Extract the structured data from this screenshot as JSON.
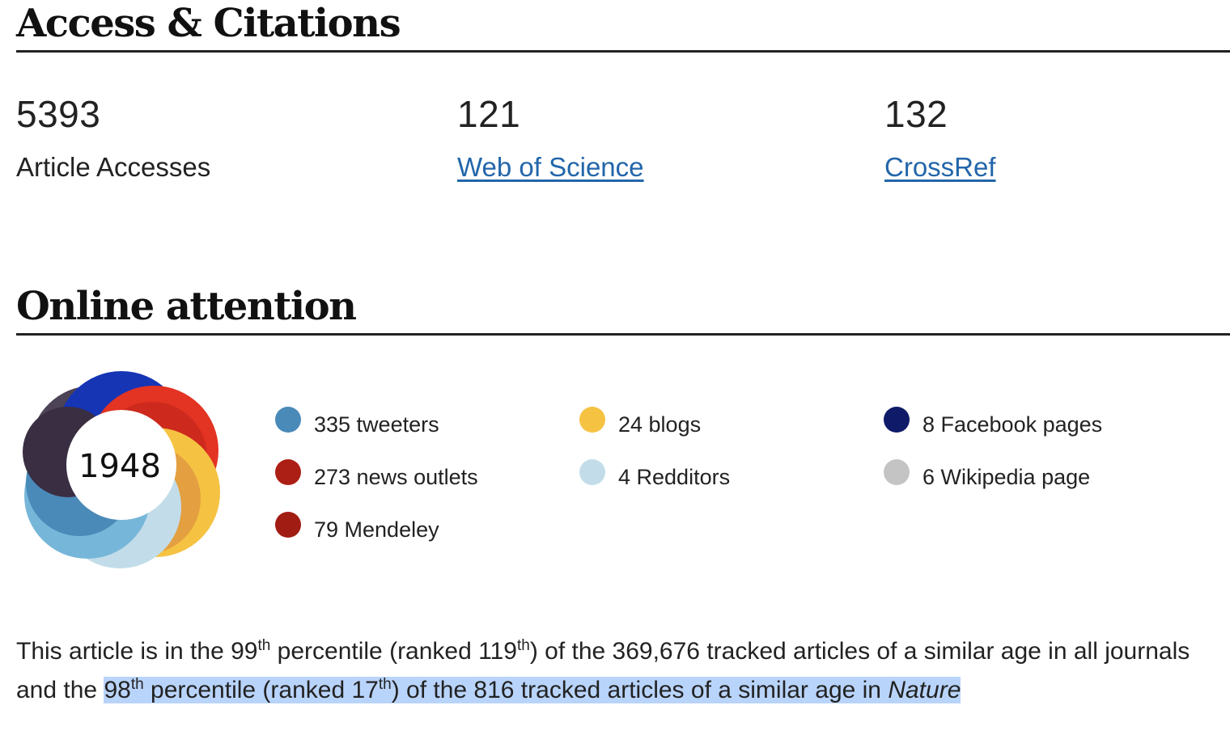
{
  "access": {
    "title": "Access & Citations",
    "metrics": [
      {
        "value": "5393",
        "label": "Article Accesses"
      },
      {
        "value": "121",
        "label": "Web of Science"
      },
      {
        "value": "132",
        "label": "CrossRef"
      }
    ]
  },
  "attention": {
    "title": "Online attention",
    "score": "1948",
    "colors": [
      "#4a8ab9",
      "#ab1f15",
      "#f5c242",
      "#c2dde9",
      "#0f1b69",
      "#c4c4c4"
    ],
    "legend": [
      {
        "label": "335 tweeters",
        "color": "#4a8ab9"
      },
      {
        "label": "273 news outlets",
        "color": "#ab1f15"
      },
      {
        "label": "79 Mendeley",
        "color": "#a11c12"
      },
      {
        "label": "24 blogs",
        "color": "#f5c242"
      },
      {
        "label": "4 Redditors",
        "color": "#c2dde9"
      },
      {
        "label": "8 Facebook pages",
        "color": "#0f1b69"
      },
      {
        "label": "6 Wikipedia page",
        "color": "#c4c4c4"
      }
    ]
  },
  "percentile": {
    "p1": "This article is in the 99",
    "s1": "th",
    "p2": " percentile (ranked 119",
    "s2": "th",
    "p3": ") of the 369,676 tracked articles of a similar age in all journals and the ",
    "h1": "98",
    "hs1": "th",
    "h2": " percentile (ranked 17",
    "hs2": "th",
    "h3": ") of the 816 tracked articles of a similar age in ",
    "journal": "Nature"
  }
}
